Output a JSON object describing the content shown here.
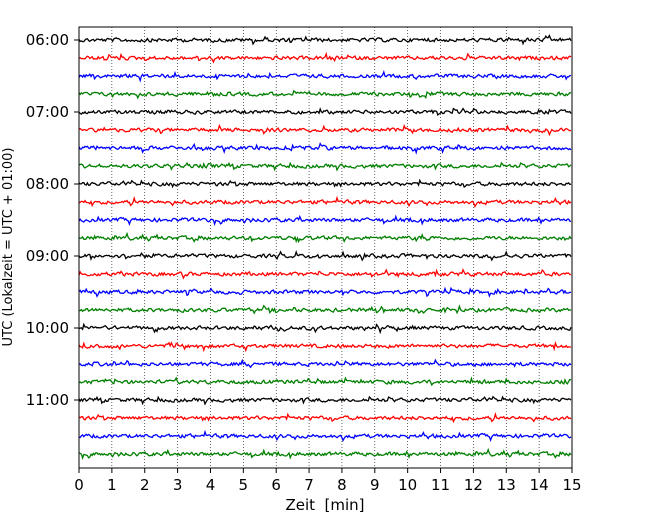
{
  "chart_data": {
    "type": "line",
    "title": "",
    "xlabel": "Zeit  [min]",
    "ylabel": "UTC (Lokalzeit = UTC + 01:00)",
    "xlim": [
      0,
      15
    ],
    "x_ticks": [
      "0",
      "1",
      "2",
      "3",
      "4",
      "5",
      "6",
      "7",
      "8",
      "9",
      "10",
      "11",
      "12",
      "13",
      "14",
      "15"
    ],
    "y_ticks": [
      "06:00",
      "07:00",
      "08:00",
      "09:00",
      "10:00",
      "11:00"
    ],
    "grid": "vertical dotted at every minute",
    "trace_interval_min": 15,
    "trace_colors": [
      "#000000",
      "#ff0000",
      "#0000ff",
      "#007f00"
    ],
    "series": [
      {
        "start": "06:00",
        "color": "#000000"
      },
      {
        "start": "06:15",
        "color": "#ff0000"
      },
      {
        "start": "06:30",
        "color": "#0000ff"
      },
      {
        "start": "06:45",
        "color": "#007f00"
      },
      {
        "start": "07:00",
        "color": "#000000"
      },
      {
        "start": "07:15",
        "color": "#ff0000"
      },
      {
        "start": "07:30",
        "color": "#0000ff"
      },
      {
        "start": "07:45",
        "color": "#007f00"
      },
      {
        "start": "08:00",
        "color": "#000000"
      },
      {
        "start": "08:15",
        "color": "#ff0000"
      },
      {
        "start": "08:30",
        "color": "#0000ff"
      },
      {
        "start": "08:45",
        "color": "#007f00"
      },
      {
        "start": "09:00",
        "color": "#000000"
      },
      {
        "start": "09:15",
        "color": "#ff0000"
      },
      {
        "start": "09:30",
        "color": "#0000ff"
      },
      {
        "start": "09:45",
        "color": "#007f00"
      },
      {
        "start": "10:00",
        "color": "#000000"
      },
      {
        "start": "10:15",
        "color": "#ff0000"
      },
      {
        "start": "10:30",
        "color": "#0000ff"
      },
      {
        "start": "10:45",
        "color": "#007f00"
      },
      {
        "start": "11:00",
        "color": "#000000"
      },
      {
        "start": "11:15",
        "color": "#ff0000"
      },
      {
        "start": "11:30",
        "color": "#0000ff"
      },
      {
        "start": "11:45",
        "color": "#007f00"
      }
    ]
  }
}
